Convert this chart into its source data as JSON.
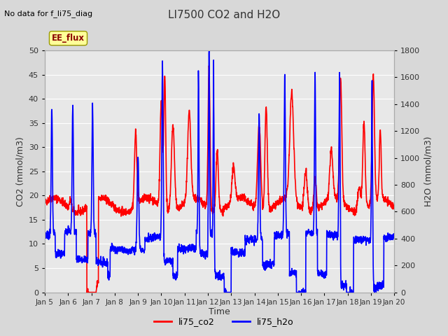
{
  "title": "LI7500 CO2 and H2O",
  "top_left_text": "No data for f_li75_diag",
  "xlabel": "Time",
  "ylabel_left": "CO2 (mmol/m3)",
  "ylabel_right": "H2O (mmol/m3)",
  "ylim_left": [
    0,
    50
  ],
  "ylim_right": [
    0,
    1800
  ],
  "xtick_labels": [
    "Jan 5",
    "Jan 6",
    "Jan 7",
    "Jan 8",
    "Jan 9",
    "Jan 10",
    "Jan 11",
    "Jan 12",
    "Jan 13",
    "Jan 14",
    "Jan 15",
    "Jan 16",
    "Jan 17",
    "Jan 18",
    "Jan 19",
    "Jan 20"
  ],
  "legend_labels": [
    "li75_co2",
    "li75_h2o"
  ],
  "legend_colors": [
    "red",
    "blue"
  ],
  "co2_color": "red",
  "h2o_color": "blue",
  "fig_bg_color": "#d8d8d8",
  "plot_bg_color": "#e8e8e8",
  "annotation_text": "EE_flux",
  "annotation_bg": "#ffff99",
  "annotation_border": "#999900",
  "title_color": "#333333",
  "axis_label_color": "#333333",
  "tick_label_color": "#333333",
  "grid_color": "#ffffff",
  "linewidth_co2": 1.2,
  "linewidth_h2o": 1.2,
  "yticks_left": [
    0,
    5,
    10,
    15,
    20,
    25,
    30,
    35,
    40,
    45,
    50
  ],
  "yticks_right": [
    0,
    200,
    400,
    600,
    800,
    1000,
    1200,
    1400,
    1600,
    1800
  ]
}
